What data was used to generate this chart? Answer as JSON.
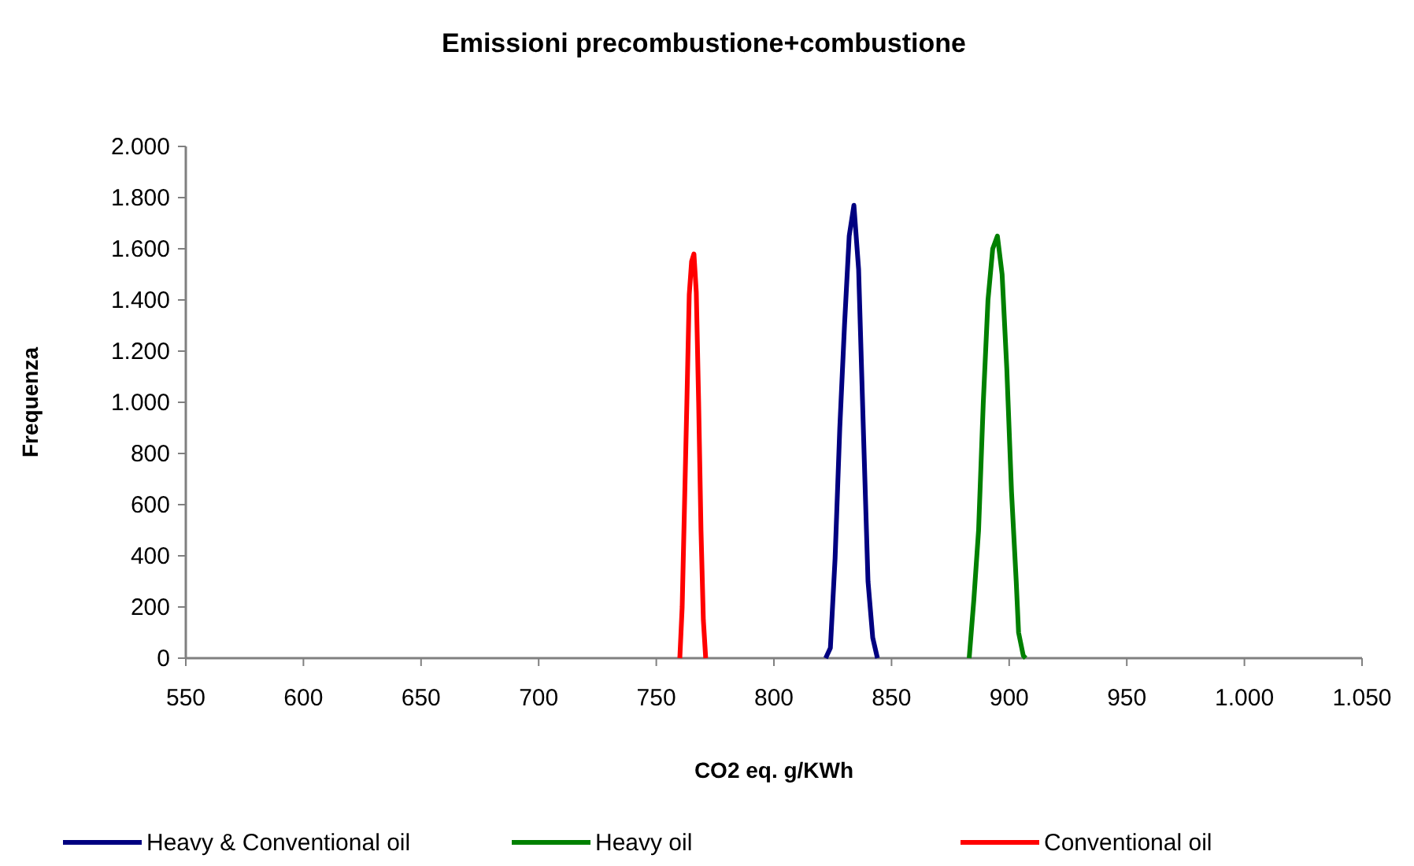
{
  "chart_data": {
    "type": "line",
    "title": "Emissioni precombustione+combustione",
    "xlabel": "CO2 eq. g/KWh",
    "ylabel": "Frequenza",
    "xlim": [
      550,
      1050
    ],
    "xticks": [
      550,
      600,
      650,
      700,
      750,
      800,
      850,
      900,
      950,
      {
        "value": 1000,
        "label": "1.000"
      },
      {
        "value": 1050,
        "label": "1.050"
      }
    ],
    "ylim": [
      0,
      2000
    ],
    "yticks": [
      0,
      200,
      400,
      600,
      800,
      {
        "value": 1000,
        "label": "1.000"
      },
      {
        "value": 1200,
        "label": "1.200"
      },
      {
        "value": 1400,
        "label": "1.400"
      },
      {
        "value": 1600,
        "label": "1.600"
      },
      {
        "value": 1800,
        "label": "1.800"
      },
      {
        "value": 2000,
        "label": "2.000"
      }
    ],
    "grid": false,
    "legend": "bottom",
    "marker": "none",
    "line_style": "solid",
    "series": [
      {
        "name": "Heavy & Conventional oil",
        "color": "#000080",
        "x": [
          822,
          824,
          826,
          828,
          830,
          832,
          834,
          836,
          838,
          840,
          842,
          844
        ],
        "values": [
          0,
          40,
          390,
          900,
          1300,
          1650,
          1770,
          1520,
          900,
          300,
          80,
          0
        ]
      },
      {
        "name": "Heavy oil",
        "color": "#008000",
        "x": [
          883,
          885,
          887,
          889,
          891,
          893,
          895,
          897,
          899,
          901,
          903,
          904,
          906,
          907
        ],
        "values": [
          0,
          230,
          500,
          1000,
          1400,
          1600,
          1650,
          1500,
          1130,
          650,
          300,
          100,
          10,
          0
        ]
      },
      {
        "name": "Conventional oil",
        "color": "#ff0000",
        "x": [
          760,
          761,
          763,
          764,
          765,
          766,
          767,
          768,
          769,
          770,
          771
        ],
        "values": [
          0,
          200,
          1000,
          1420,
          1550,
          1580,
          1430,
          1000,
          500,
          150,
          0
        ]
      }
    ]
  }
}
